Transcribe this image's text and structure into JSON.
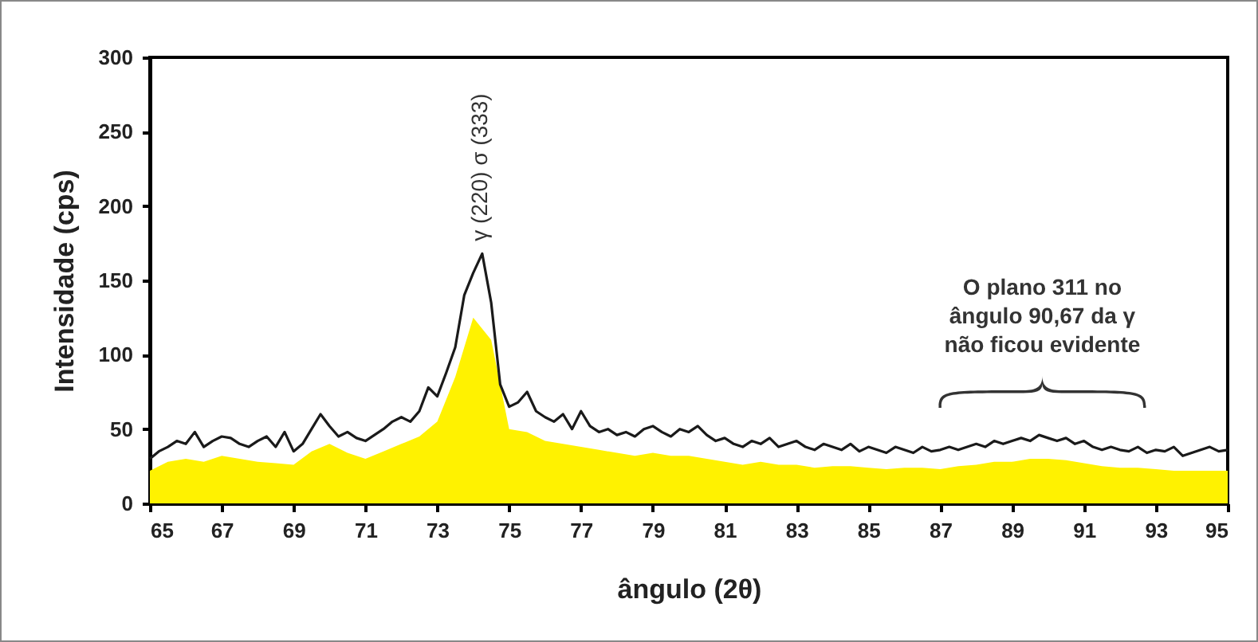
{
  "chart_data": {
    "type": "area",
    "xlabel": "ângulo (2θ)",
    "ylabel": "Intensidade (cps)",
    "xlim": [
      65,
      95
    ],
    "xticks": [
      65,
      67,
      69,
      71,
      73,
      75,
      77,
      79,
      81,
      83,
      85,
      87,
      89,
      91,
      93,
      95
    ],
    "ylim": [
      0,
      300
    ],
    "yticks": [
      0,
      50,
      100,
      150,
      200,
      250,
      300
    ],
    "series": [
      {
        "type": "line",
        "color": "#1a1a1a",
        "x": [
          65,
          65.25,
          65.5,
          65.75,
          66,
          66.25,
          66.5,
          66.75,
          67,
          67.25,
          67.5,
          67.75,
          68,
          68.25,
          68.5,
          68.75,
          69,
          69.25,
          69.5,
          69.75,
          70,
          70.25,
          70.5,
          70.75,
          71,
          71.25,
          71.5,
          71.75,
          72,
          72.25,
          72.5,
          72.75,
          73,
          73.25,
          73.5,
          73.75,
          74,
          74.25,
          74.5,
          74.75,
          75,
          75.25,
          75.5,
          75.75,
          76,
          76.25,
          76.5,
          76.75,
          77,
          77.25,
          77.5,
          77.75,
          78,
          78.25,
          78.5,
          78.75,
          79,
          79.25,
          79.5,
          79.75,
          80,
          80.25,
          80.5,
          80.75,
          81,
          81.25,
          81.5,
          81.75,
          82,
          82.25,
          82.5,
          82.75,
          83,
          83.25,
          83.5,
          83.75,
          84,
          84.25,
          84.5,
          84.75,
          85,
          85.25,
          85.5,
          85.75,
          86,
          86.25,
          86.5,
          86.75,
          87,
          87.25,
          87.5,
          87.75,
          88,
          88.25,
          88.5,
          88.75,
          89,
          89.25,
          89.5,
          89.75,
          90,
          90.25,
          90.5,
          90.75,
          91,
          91.25,
          91.5,
          91.75,
          92,
          92.25,
          92.5,
          92.75,
          93,
          93.25,
          93.5,
          93.75,
          94,
          94.25,
          94.5,
          94.75,
          95
        ],
        "values": [
          30,
          35,
          38,
          42,
          40,
          48,
          38,
          42,
          45,
          44,
          40,
          38,
          42,
          45,
          38,
          48,
          35,
          40,
          50,
          60,
          52,
          45,
          48,
          44,
          42,
          46,
          50,
          55,
          58,
          55,
          62,
          78,
          72,
          88,
          105,
          140,
          155,
          168,
          135,
          80,
          65,
          68,
          75,
          62,
          58,
          55,
          60,
          50,
          62,
          52,
          48,
          50,
          46,
          48,
          45,
          50,
          52,
          48,
          45,
          50,
          48,
          52,
          46,
          42,
          44,
          40,
          38,
          42,
          40,
          44,
          38,
          40,
          42,
          38,
          36,
          40,
          38,
          36,
          40,
          35,
          38,
          36,
          34,
          38,
          36,
          34,
          38,
          35,
          36,
          38,
          36,
          38,
          40,
          38,
          42,
          40,
          42,
          44,
          42,
          46,
          44,
          42,
          44,
          40,
          42,
          38,
          36,
          38,
          36,
          35,
          38,
          34,
          36,
          35,
          38,
          32,
          34,
          36,
          38,
          35,
          36
        ]
      },
      {
        "color": "#fff200",
        "x": [
          65,
          65.5,
          66,
          66.5,
          67,
          67.5,
          68,
          68.5,
          69,
          69.5,
          70,
          70.5,
          71,
          71.5,
          72,
          72.5,
          73,
          73.5,
          74,
          74.5,
          75,
          75.5,
          76,
          76.5,
          77,
          77.5,
          78,
          78.5,
          79,
          79.5,
          80,
          80.5,
          81,
          81.5,
          82,
          82.5,
          83,
          83.5,
          84,
          84.5,
          85,
          85.5,
          86,
          86.5,
          87,
          87.5,
          88,
          88.5,
          89,
          89.5,
          90,
          90.5,
          91,
          91.5,
          92,
          92.5,
          93,
          93.5,
          94,
          94.5,
          95
        ],
        "values": [
          22,
          28,
          30,
          28,
          32,
          30,
          28,
          27,
          26,
          35,
          40,
          34,
          30,
          35,
          40,
          45,
          55,
          85,
          125,
          110,
          50,
          48,
          42,
          40,
          38,
          36,
          34,
          32,
          34,
          32,
          32,
          30,
          28,
          26,
          28,
          26,
          26,
          24,
          25,
          25,
          24,
          23,
          24,
          24,
          23,
          25,
          26,
          28,
          28,
          30,
          30,
          29,
          27,
          25,
          24,
          24,
          23,
          22,
          22,
          22,
          22
        ]
      }
    ],
    "annotations": [
      {
        "text": "γ (220)  σ (333)",
        "x": 74.2,
        "y": 170
      },
      "O plano 311 no\nângulo 90,67 da γ\nnão ficou evidente"
    ]
  }
}
